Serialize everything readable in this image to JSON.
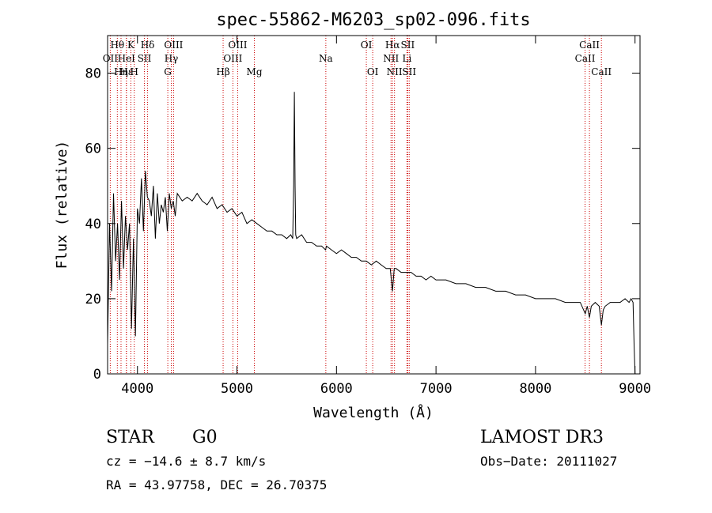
{
  "chart_data": {
    "type": "line",
    "title": "spec-55862-M6203_sp02-096.fits",
    "xlabel": "Wavelength (Å)",
    "ylabel": "Flux (relative)",
    "xlim": [
      3700,
      9050
    ],
    "ylim": [
      0,
      90
    ],
    "xticks": [
      4000,
      5000,
      6000,
      7000,
      8000,
      9000
    ],
    "yticks": [
      0,
      20,
      40,
      60,
      80
    ],
    "series": [
      {
        "name": "flux",
        "x": [
          3700,
          3720,
          3740,
          3760,
          3780,
          3800,
          3820,
          3840,
          3860,
          3880,
          3900,
          3920,
          3940,
          3960,
          3980,
          4000,
          4020,
          4040,
          4060,
          4080,
          4100,
          4120,
          4140,
          4160,
          4180,
          4200,
          4220,
          4240,
          4260,
          4280,
          4300,
          4320,
          4340,
          4360,
          4380,
          4400,
          4450,
          4500,
          4550,
          4600,
          4650,
          4700,
          4750,
          4800,
          4850,
          4900,
          4950,
          5000,
          5050,
          5100,
          5150,
          5200,
          5250,
          5300,
          5350,
          5400,
          5450,
          5500,
          5540,
          5560,
          5570,
          5577,
          5584,
          5590,
          5600,
          5650,
          5700,
          5750,
          5800,
          5850,
          5890,
          5900,
          5950,
          6000,
          6050,
          6100,
          6150,
          6200,
          6250,
          6300,
          6350,
          6400,
          6450,
          6500,
          6540,
          6563,
          6580,
          6600,
          6650,
          6700,
          6750,
          6800,
          6850,
          6900,
          6950,
          7000,
          7100,
          7200,
          7300,
          7400,
          7500,
          7600,
          7700,
          7800,
          7900,
          8000,
          8100,
          8200,
          8300,
          8400,
          8450,
          8500,
          8520,
          8542,
          8560,
          8600,
          8640,
          8662,
          8680,
          8700,
          8750,
          8800,
          8850,
          8900,
          8940,
          8960,
          8980,
          8990,
          9000
        ],
        "values": [
          8,
          40,
          22,
          48,
          30,
          40,
          25,
          46,
          28,
          42,
          33,
          40,
          12,
          36,
          10,
          44,
          40,
          52,
          38,
          54,
          47,
          46,
          42,
          50,
          36,
          48,
          40,
          45,
          43,
          47,
          38,
          48,
          44,
          46,
          42,
          48,
          46,
          47,
          46,
          48,
          46,
          45,
          47,
          44,
          45,
          43,
          44,
          42,
          43,
          40,
          41,
          40,
          39,
          38,
          38,
          37,
          37,
          36,
          37,
          36,
          50,
          75,
          50,
          37,
          36,
          37,
          35,
          35,
          34,
          34,
          33,
          34,
          33,
          32,
          33,
          32,
          31,
          31,
          30,
          30,
          29,
          30,
          29,
          28,
          28,
          22,
          28,
          28,
          27,
          27,
          27,
          26,
          26,
          25,
          26,
          25,
          25,
          24,
          24,
          23,
          23,
          22,
          22,
          21,
          21,
          20,
          20,
          20,
          19,
          19,
          19,
          16,
          18,
          15,
          18,
          19,
          18,
          13,
          17,
          18,
          19,
          19,
          19,
          20,
          19,
          20,
          19,
          8,
          0
        ]
      }
    ],
    "line_marks": [
      {
        "label": "Hθ",
        "wave": 3798,
        "row": 1
      },
      {
        "label": "OII",
        "wave": 3727,
        "row": 2
      },
      {
        "label": "Hη",
        "wave": 3835,
        "row": 3
      },
      {
        "label": "HeI",
        "wave": 3889,
        "row": 2
      },
      {
        "label": "Hε",
        "wave": 3889,
        "row": 3
      },
      {
        "label": "K",
        "wave": 3934,
        "row": 1
      },
      {
        "label": "SII",
        "wave": 4070,
        "row": 2
      },
      {
        "label": "H",
        "wave": 3968,
        "row": 3
      },
      {
        "label": "Hδ",
        "wave": 4102,
        "row": 1
      },
      {
        "label": "OIII",
        "wave": 4363,
        "row": 1
      },
      {
        "label": "Hγ",
        "wave": 4340,
        "row": 2
      },
      {
        "label": "G",
        "wave": 4305,
        "row": 3
      },
      {
        "label": "Hβ",
        "wave": 4861,
        "row": 3
      },
      {
        "label": "OIII",
        "wave": 5007,
        "row": 1
      },
      {
        "label": "OIII",
        "wave": 4959,
        "row": 2
      },
      {
        "label": "Mg",
        "wave": 5175,
        "row": 3
      },
      {
        "label": "Na",
        "wave": 5893,
        "row": 2
      },
      {
        "label": "OI",
        "wave": 6300,
        "row": 1
      },
      {
        "label": "OI",
        "wave": 6364,
        "row": 3
      },
      {
        "label": "Hα",
        "wave": 6563,
        "row": 1
      },
      {
        "label": "NII",
        "wave": 6548,
        "row": 2
      },
      {
        "label": "NII",
        "wave": 6583,
        "row": 3
      },
      {
        "label": "SII",
        "wave": 6716,
        "row": 1
      },
      {
        "label": "Li",
        "wave": 6708,
        "row": 2
      },
      {
        "label": "SII",
        "wave": 6731,
        "row": 3
      },
      {
        "label": "CaII",
        "wave": 8542,
        "row": 1
      },
      {
        "label": "CaII",
        "wave": 8498,
        "row": 2
      },
      {
        "label": "CaII",
        "wave": 8662,
        "row": 3
      }
    ],
    "line_mark_color": "#cc0000"
  },
  "info": {
    "class_label": "STAR",
    "subclass": "G0",
    "survey": "LAMOST DR3",
    "cz_text": "cz = −14.6 ± 8.7 km/s",
    "obs_date_text": "Obs−Date: 20111027",
    "radec_text": "RA =  43.97758, DEC =  26.70375"
  }
}
